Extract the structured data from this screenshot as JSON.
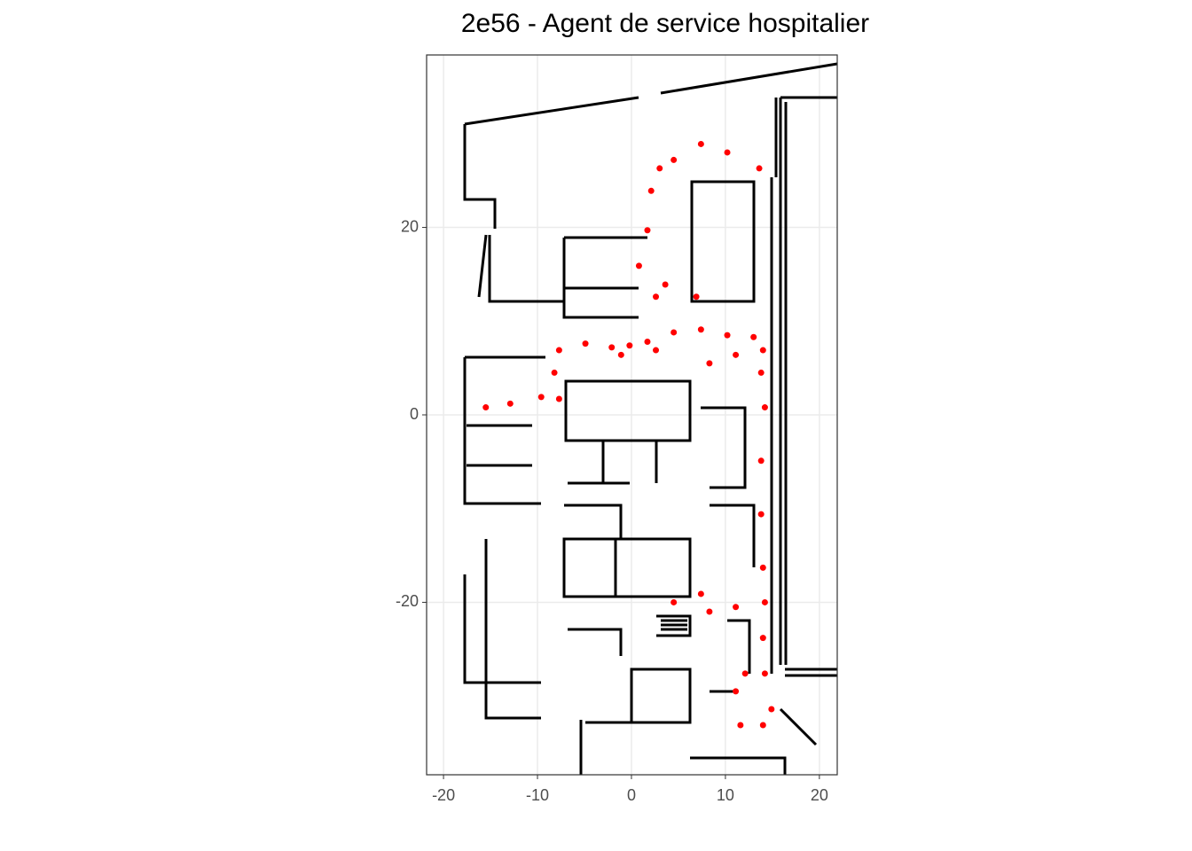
{
  "chart_data": {
    "type": "scatter",
    "title": "2e56 - Agent de service hospitalier",
    "series": [
      {
        "color": "#ff0000",
        "x": [
          -15.5,
          -12.9,
          -9.6,
          -7.7,
          -8.2,
          -7.7,
          -4.9,
          -2.1,
          -1.1,
          -0.2,
          1.7,
          2.6,
          4.5,
          7.4,
          8.3,
          10.2,
          11.1,
          13.0,
          14.0,
          13.8,
          14.2,
          13.8,
          13.8,
          14.0,
          14.2,
          11.1,
          8.3,
          7.4,
          4.5,
          14.0,
          14.2,
          14.9,
          14.0,
          11.6,
          11.1,
          12.1,
          6.9,
          3.6,
          2.6,
          0.8,
          1.7,
          2.1,
          3.0,
          4.5,
          7.4,
          10.2,
          13.6
        ],
        "y": [
          0.8,
          1.2,
          1.9,
          1.7,
          4.5,
          6.9,
          7.6,
          7.2,
          6.4,
          7.4,
          7.8,
          6.9,
          8.8,
          9.1,
          5.5,
          8.5,
          6.4,
          8.3,
          6.9,
          4.5,
          0.8,
          -4.9,
          -10.6,
          -16.3,
          -20.0,
          -20.5,
          -21.0,
          -19.1,
          -20.0,
          -23.8,
          -27.6,
          -31.4,
          -33.1,
          -33.1,
          -29.5,
          -27.6,
          12.6,
          13.9,
          12.6,
          15.9,
          19.7,
          23.9,
          26.3,
          27.2,
          28.9,
          28.0,
          26.3
        ]
      }
    ],
    "xlim": [
      -21.8,
      21.9
    ],
    "ylim": [
      -38.4,
      38.4
    ],
    "xticks": [
      -20,
      -10,
      0,
      10,
      20
    ],
    "yticks": [
      -20,
      0,
      20
    ],
    "grid": true
  }
}
